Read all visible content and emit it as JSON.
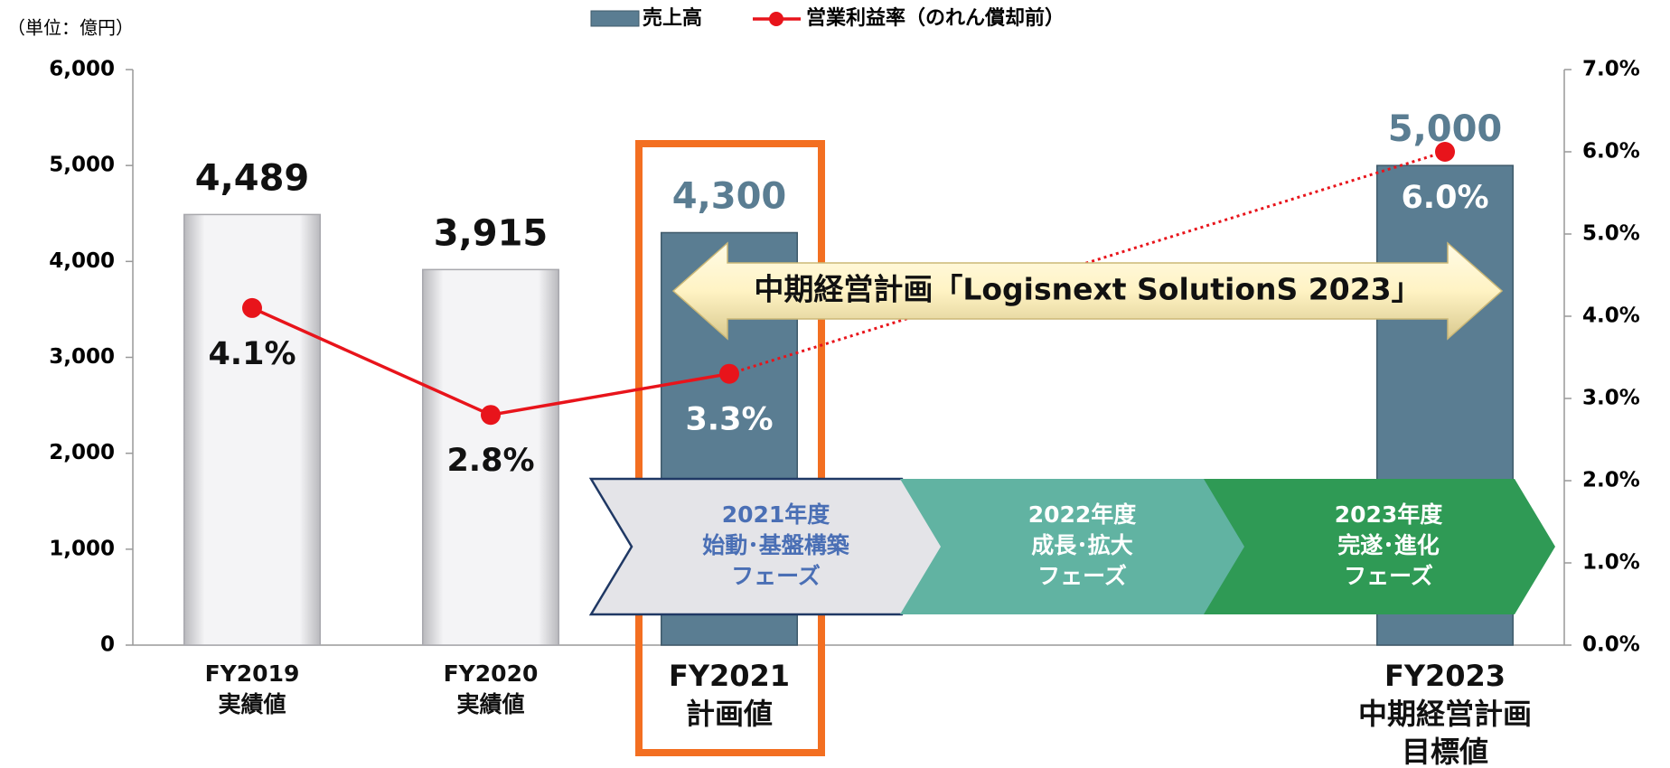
{
  "chart_data": {
    "type": "bar",
    "unit_label": "（単位：億円）",
    "categories": [
      [
        "FY2019",
        "実績値"
      ],
      [
        "FY2020",
        "実績値"
      ],
      [
        "FY2021",
        "計画値"
      ],
      null,
      null,
      [
        "FY2023",
        "中期経営計画",
        "目標値"
      ]
    ],
    "series": [
      {
        "name": "売上高",
        "type": "bar",
        "color": "#5a7d92",
        "colors": [
          "#e6e6e9",
          "#e6e6e9",
          "#5a7d92",
          null,
          null,
          "#5a7d92"
        ],
        "values": [
          4489,
          3915,
          4300,
          null,
          null,
          5000
        ],
        "value_labels": [
          "4,489",
          "3,915",
          "4,300",
          null,
          null,
          "5,000"
        ]
      },
      {
        "name": "営業利益率（のれん償却前）",
        "type": "line",
        "axis": "y2",
        "color": "#e8141b",
        "values": [
          4.1,
          2.8,
          3.3,
          null,
          null,
          6.0
        ],
        "value_labels": [
          "4.1%",
          "2.8%",
          "3.3%",
          null,
          null,
          "6.0%"
        ]
      }
    ],
    "ylim": [
      0,
      6000
    ],
    "yticks": [
      {
        "value": 0,
        "label": "0"
      },
      {
        "value": 1000,
        "label": "1,000"
      },
      {
        "value": 2000,
        "label": "2,000"
      },
      {
        "value": 3000,
        "label": "3,000"
      },
      {
        "value": 4000,
        "label": "4,000"
      },
      {
        "value": 5000,
        "label": "5,000"
      },
      {
        "value": 6000,
        "label": "6,000"
      }
    ],
    "y2lim": [
      0,
      7
    ],
    "y2ticks": [
      {
        "value": 0,
        "label": "0.0%"
      },
      {
        "value": 1,
        "label": "1.0%"
      },
      {
        "value": 2,
        "label": "2.0%"
      },
      {
        "value": 3,
        "label": "3.0%"
      },
      {
        "value": 4,
        "label": "4.0%"
      },
      {
        "value": 5,
        "label": "5.0%"
      },
      {
        "value": 6,
        "label": "6.0%"
      },
      {
        "value": 7,
        "label": "7.0%"
      }
    ],
    "plan_arrow": "中期経営計画「Logisnext SolutionS 2023」",
    "phases": [
      [
        "2021年度",
        "始動･基盤構築",
        "フェーズ"
      ],
      [
        "2022年度",
        "成長･拡大",
        "フェーズ"
      ],
      [
        "2023年度",
        "完遂･進化",
        "フェーズ"
      ]
    ],
    "legend_position": "top"
  }
}
